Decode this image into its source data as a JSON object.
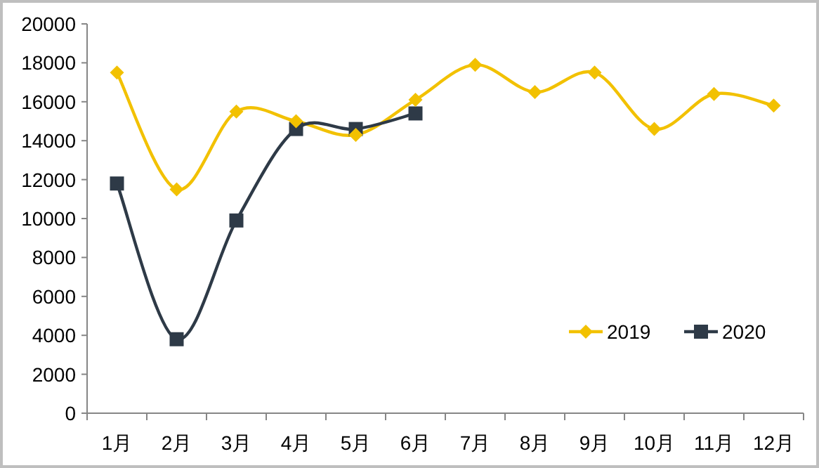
{
  "chart_data": {
    "type": "line",
    "categories": [
      "1月",
      "2月",
      "3月",
      "4月",
      "5月",
      "6月",
      "7月",
      "8月",
      "9月",
      "10月",
      "11月",
      "12月"
    ],
    "series": [
      {
        "name": "2019",
        "color": "#f2c100",
        "marker": "diamond",
        "values": [
          17500,
          11500,
          15500,
          15000,
          14300,
          16100,
          17900,
          16500,
          17500,
          14600,
          16400,
          15800
        ]
      },
      {
        "name": "2020",
        "color": "#2e3a47",
        "marker": "square",
        "values": [
          11800,
          3800,
          9900,
          14600,
          14600,
          15400,
          null,
          null,
          null,
          null,
          null,
          null
        ]
      }
    ],
    "ylim": [
      0,
      20000
    ],
    "yticks": [
      0,
      2000,
      4000,
      6000,
      8000,
      10000,
      12000,
      14000,
      16000,
      18000,
      20000
    ],
    "grid": false,
    "legend": "bottom right",
    "line_style": "solid"
  }
}
